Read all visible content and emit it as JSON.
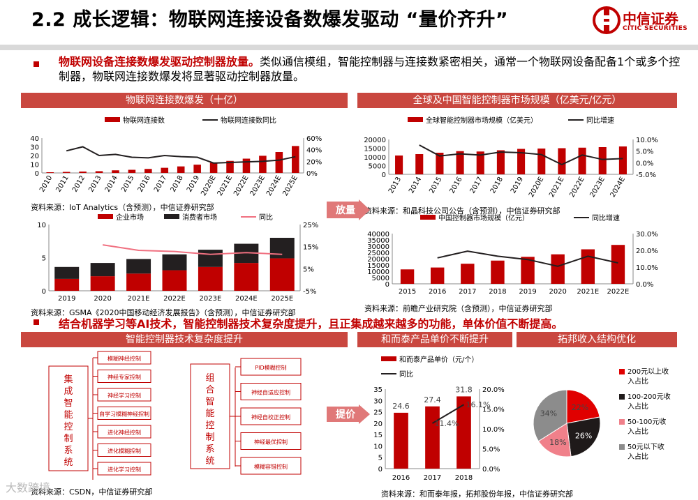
{
  "header": {
    "title": "2.2 成长逻辑：物联网连接设备数爆发驱动 “量价齐升”",
    "logo_cn": "中信证券",
    "logo_en": "CITIC SECURITIES"
  },
  "intro": {
    "highlight": "物联网设备连接数爆发驱动控制器放量。",
    "rest": "类似通信模组，智能控制器与连接数紧密相关，通常一个物联网设备配备1个或多个控制器，物联网连接数爆发将显著驱动控制器放量。"
  },
  "sections": {
    "s1": "物联网连接数爆发（十亿）",
    "s2": "全球及中国智能控制器市场规模（亿美元/亿元）",
    "s3": "智能控制器技术复杂度提升",
    "s4": "和而泰产品单价不断提升",
    "s5": "拓邦收入结构优化"
  },
  "arrows": {
    "a1": "放量",
    "a2": "提价"
  },
  "note2": "结合机器学习等AI技术，智能控制器技术复杂度提升，且正集成越来越多的功能，单体价值不断提高。",
  "sources": {
    "c1": "资料来源：IoT Analytics（含预测），中信证券研究部",
    "c2": "资料来源：GSMA《2020中国移动经济发展报告》（含预测），中信证券研究部",
    "c3": "资料来源：和晶科技公司公告（含预测），中信证券研究部",
    "c4": "资料来源：前瞻产业研究院（含预测），中信证券研究部",
    "c5": "资料来源：CSDN，中信证券研究部",
    "c6": "资料来源：和而泰年报，拓邦股份年报，中信证券研究部"
  },
  "diagram": {
    "left_title": "集成智能控制系统",
    "left_items": [
      "模糊神经控制",
      "神经专家控制",
      "神经学习控制",
      "自学习模糊神经控制",
      "进化神经控制",
      "进化模糊控制",
      "进化学习控制"
    ],
    "right_title": "组合智能控制系统",
    "right_items": [
      "PID模糊控制",
      "神经自适应控制",
      "神经自校正控制",
      "神经最优控制",
      "模糊容错控制"
    ]
  },
  "watermark": "大数跨境",
  "chart_data": [
    {
      "type": "bar",
      "id": "iot_connections",
      "categories": [
        "2010",
        "2011",
        "2012",
        "2013",
        "2014",
        "2015",
        "2016",
        "2017",
        "2018",
        "2019",
        "2020E",
        "2021E",
        "2022E",
        "2023E",
        "2024E",
        "2025E"
      ],
      "series": [
        {
          "name": "物联网连接数",
          "type": "bar",
          "axis": "left",
          "values": [
            0.8,
            1.2,
            1.6,
            2.0,
            3.0,
            3.6,
            4.6,
            5.9,
            7.5,
            9.5,
            11.7,
            13.8,
            16.4,
            19.7,
            24.0,
            30.9
          ]
        },
        {
          "name": "物联网连接数同比",
          "type": "line",
          "axis": "right",
          "values": [
            null,
            38,
            45,
            30,
            32,
            27,
            26,
            30,
            28,
            27,
            17,
            18,
            19,
            20,
            22,
            28
          ]
        }
      ],
      "ylim": [
        0,
        40
      ],
      "yticks": [
        0,
        10,
        20,
        30,
        40
      ],
      "y2lim": [
        0,
        60
      ],
      "y2ticks": [
        "0%",
        "20%",
        "40%",
        "60%"
      ]
    },
    {
      "type": "bar",
      "id": "china_iot_market",
      "categories": [
        "2019",
        "2020",
        "2021E",
        "2022E",
        "2023E",
        "2024E",
        "2025E"
      ],
      "series": [
        {
          "name": "企业市场",
          "type": "bar",
          "stack": true,
          "values": [
            1.8,
            2.2,
            2.6,
            3.1,
            3.6,
            4.2,
            4.9
          ]
        },
        {
          "name": "消费者市场",
          "type": "bar",
          "stack": true,
          "values": [
            1.8,
            2.0,
            2.2,
            2.4,
            2.6,
            2.9,
            3.1
          ]
        },
        {
          "name": "同比",
          "type": "line",
          "axis": "right",
          "values": [
            null,
            15.8,
            13.3,
            12.8,
            11.5,
            12.3,
            11.5
          ]
        }
      ],
      "ylim": [
        0,
        10
      ],
      "yticks": [
        0,
        5,
        10
      ],
      "y2lim": [
        -5,
        25
      ],
      "y2ticks": [
        "-5%",
        "5%",
        "15%",
        "25%"
      ]
    },
    {
      "type": "bar",
      "id": "global_controller",
      "categories": [
        "2013",
        "2014",
        "2015",
        "2016",
        "2017",
        "2018",
        "2019",
        "2020E",
        "2021E",
        "2022E",
        "2023E",
        "2024E"
      ],
      "series": [
        {
          "name": "全球智能控制器市场规模（亿美元）",
          "type": "bar",
          "axis": "left",
          "values": [
            10800,
            11600,
            12400,
            13300,
            13100,
            13800,
            14600,
            14800,
            15000,
            15300,
            15600,
            16000
          ]
        },
        {
          "name": "同比增速",
          "type": "line",
          "axis": "right",
          "values": [
            null,
            7.6,
            2.9,
            3.8,
            3.3,
            4.6,
            4.3,
            3.5,
            -0.8,
            3.3,
            1.4,
            1.8
          ]
        }
      ],
      "ylim": [
        0,
        20000
      ],
      "yticks": [
        0,
        5000,
        10000,
        15000,
        20000
      ],
      "y2lim": [
        -5,
        10
      ],
      "y2ticks": [
        "-5.0%",
        "0.0%",
        "5.0%",
        "10.0%"
      ]
    },
    {
      "type": "bar",
      "id": "china_controller",
      "categories": [
        "2015",
        "2016",
        "2017",
        "2018",
        "2019",
        "2020",
        "2021E",
        "2022E"
      ],
      "series": [
        {
          "name": "中国控制器市场规模（亿元）",
          "type": "bar",
          "axis": "left",
          "values": [
            11500,
            13000,
            16000,
            18500,
            21500,
            23500,
            27500,
            31000
          ]
        },
        {
          "name": "同比增速",
          "type": "line",
          "axis": "right",
          "values": [
            null,
            15.5,
            19.5,
            16.5,
            14.5,
            10.5,
            16.5,
            12.5
          ]
        }
      ],
      "ylim": [
        0,
        40000
      ],
      "yticks": [
        0,
        5000,
        10000,
        15000,
        20000,
        25000,
        30000,
        35000,
        40000
      ],
      "y2lim": [
        0,
        30
      ],
      "y2ticks": [
        "0.0%",
        "10.0%",
        "20.0%",
        "30.0%"
      ]
    },
    {
      "type": "bar",
      "id": "het_price",
      "categories": [
        "2016",
        "2017",
        "2018"
      ],
      "series": [
        {
          "name": "和而泰产品单价（元/个）",
          "type": "bar",
          "axis": "left",
          "values": [
            24.6,
            27.4,
            31.8
          ],
          "labels": [
            "24.6",
            "27.4",
            "31.8"
          ]
        },
        {
          "name": "同比",
          "type": "line",
          "axis": "right",
          "values": [
            null,
            11.4,
            16.1
          ],
          "labels": [
            "",
            "11.4%",
            "16.1%"
          ]
        }
      ],
      "ylim": [
        0,
        35
      ],
      "yticks": [
        0,
        5,
        10,
        15,
        20,
        25,
        30,
        35
      ],
      "y2lim": [
        0,
        20
      ],
      "y2ticks": [
        "0.0%",
        "5.0%",
        "10.0%",
        "15.0%",
        "20.0%"
      ]
    },
    {
      "type": "pie",
      "id": "topband_mix",
      "slices": [
        {
          "label": "200元以上收入占比",
          "value": 22,
          "text": "22%",
          "color": "#e00000"
        },
        {
          "label": "100-200元收入占比",
          "value": 26,
          "text": "26%",
          "color": "#1f1a1a"
        },
        {
          "label": "50-100元收入占比",
          "value": 18,
          "text": "18%",
          "color": "#f0808a"
        },
        {
          "label": "50元以下收入占比",
          "value": 34,
          "text": "34%",
          "color": "#8c8c8c"
        }
      ]
    }
  ]
}
